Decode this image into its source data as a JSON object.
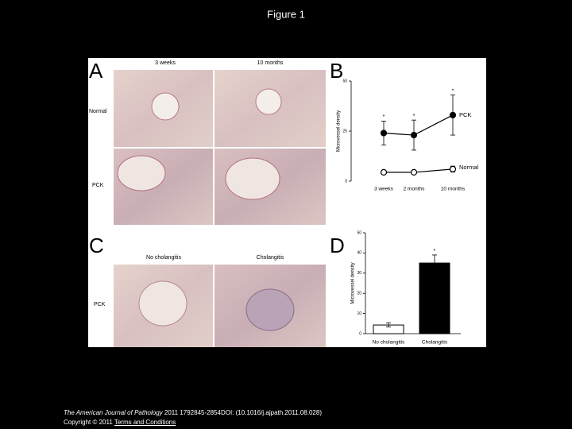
{
  "title": "Figure 1",
  "panels": {
    "letters": [
      "A",
      "B",
      "C",
      "D"
    ],
    "A": {
      "columns": [
        "3 weeks",
        "10 months"
      ],
      "rows": [
        "Normal",
        "PCK"
      ]
    },
    "C": {
      "columns": [
        "No cholangitis",
        "Cholangitis"
      ],
      "rows": [
        "PCK"
      ]
    }
  },
  "chart_data": [
    {
      "type": "line",
      "panel": "B",
      "y_label": "Microvessel density",
      "categories": [
        "3 weeks",
        "2 months",
        "10 months"
      ],
      "series": [
        {
          "name": "PCK",
          "color": "#000000",
          "marker": "filled",
          "values": [
            24,
            23,
            33
          ],
          "errors": [
            6,
            7.5,
            10
          ],
          "significance": [
            "*",
            "*",
            "*"
          ]
        },
        {
          "name": "Normal",
          "color": "#000000",
          "marker": "open",
          "values": [
            4.4,
            4.4,
            6
          ],
          "errors": [
            1,
            0.8,
            1.5
          ]
        }
      ],
      "ylim": [
        0,
        50
      ],
      "yticks": [
        0,
        25,
        50
      ]
    },
    {
      "type": "bar",
      "panel": "D",
      "y_label": "Microvessel density",
      "categories": [
        "No cholangitis",
        "Cholangitis"
      ],
      "values": [
        4.3,
        35
      ],
      "errors": [
        1,
        4
      ],
      "colors": [
        "#ffffff",
        "#000000"
      ],
      "significance": [
        null,
        "*"
      ],
      "ylim": [
        0,
        50
      ],
      "yticks": [
        0,
        10,
        20,
        30,
        40,
        50
      ]
    }
  ],
  "footer": {
    "journal": "The American Journal of Pathology",
    "citation": "2011 1792845-2854DOI: (10.1016/j.ajpath.2011.08.028)",
    "copyright": "Copyright © 2011",
    "link": "Terms and Conditions"
  }
}
